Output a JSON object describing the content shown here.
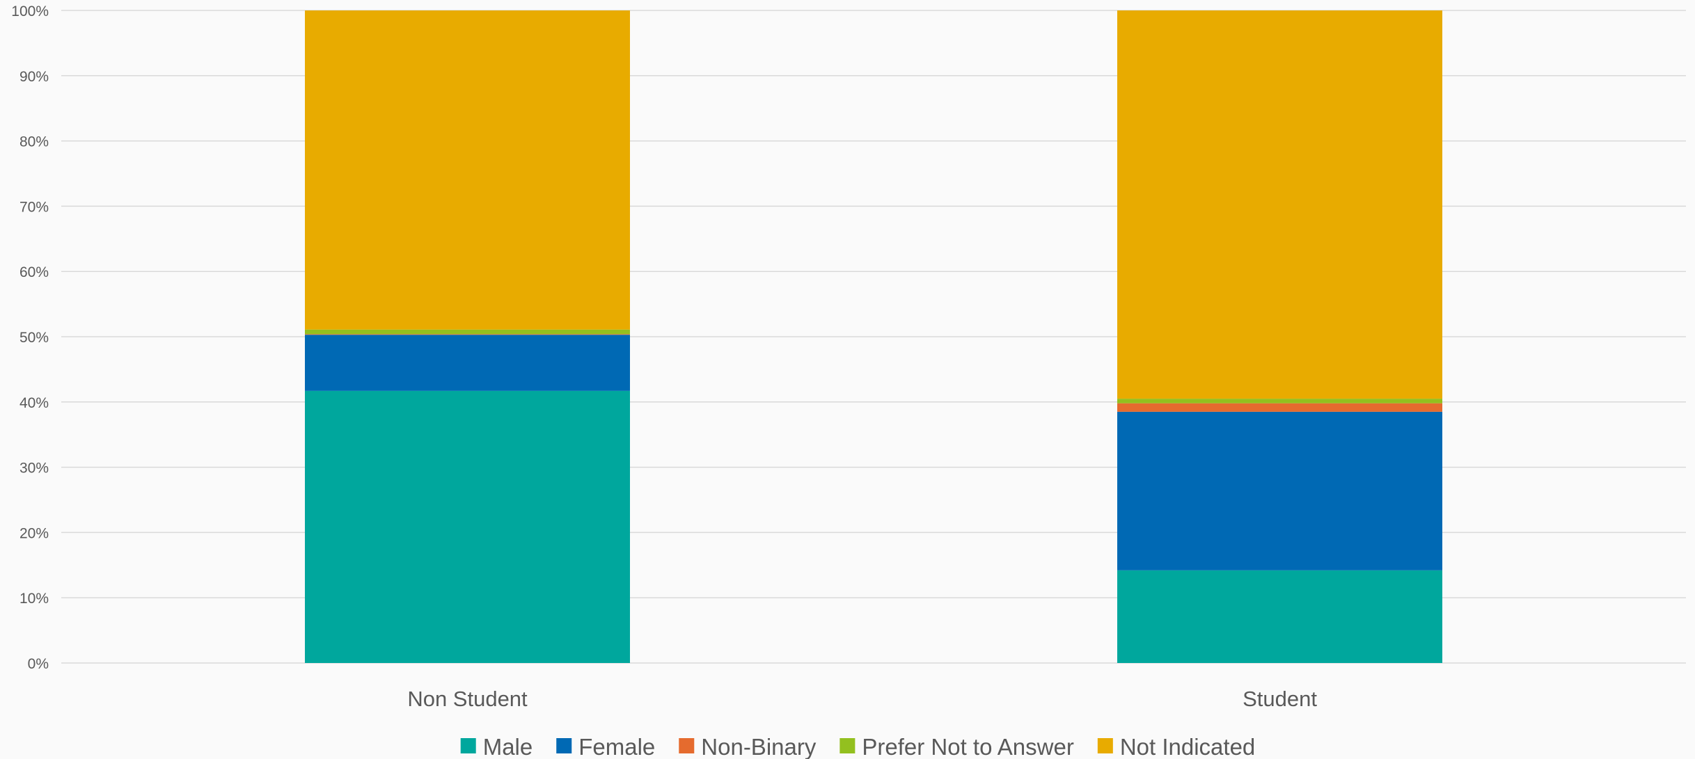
{
  "chart_data": {
    "type": "bar",
    "stacked": true,
    "percent": true,
    "categories": [
      "Non Student",
      "Student"
    ],
    "series": [
      {
        "name": "Male",
        "color": "#00a79d",
        "values": [
          41.7,
          14.2
        ]
      },
      {
        "name": "Female",
        "color": "#0069b4",
        "values": [
          8.6,
          24.3
        ]
      },
      {
        "name": "Non-Binary",
        "color": "#e56b2e",
        "values": [
          0.1,
          1.3
        ]
      },
      {
        "name": "Prefer Not to Answer",
        "color": "#93c01f",
        "values": [
          0.7,
          0.7
        ]
      },
      {
        "name": "Not Indicated",
        "color": "#e8ab00",
        "values": [
          48.9,
          59.5
        ]
      }
    ],
    "yticks": [
      "0%",
      "10%",
      "20%",
      "30%",
      "40%",
      "50%",
      "60%",
      "70%",
      "80%",
      "90%",
      "100%"
    ],
    "ylim": [
      0,
      100
    ],
    "grid": true,
    "legend": "bottom",
    "title": "",
    "xlabel": "",
    "ylabel": ""
  }
}
